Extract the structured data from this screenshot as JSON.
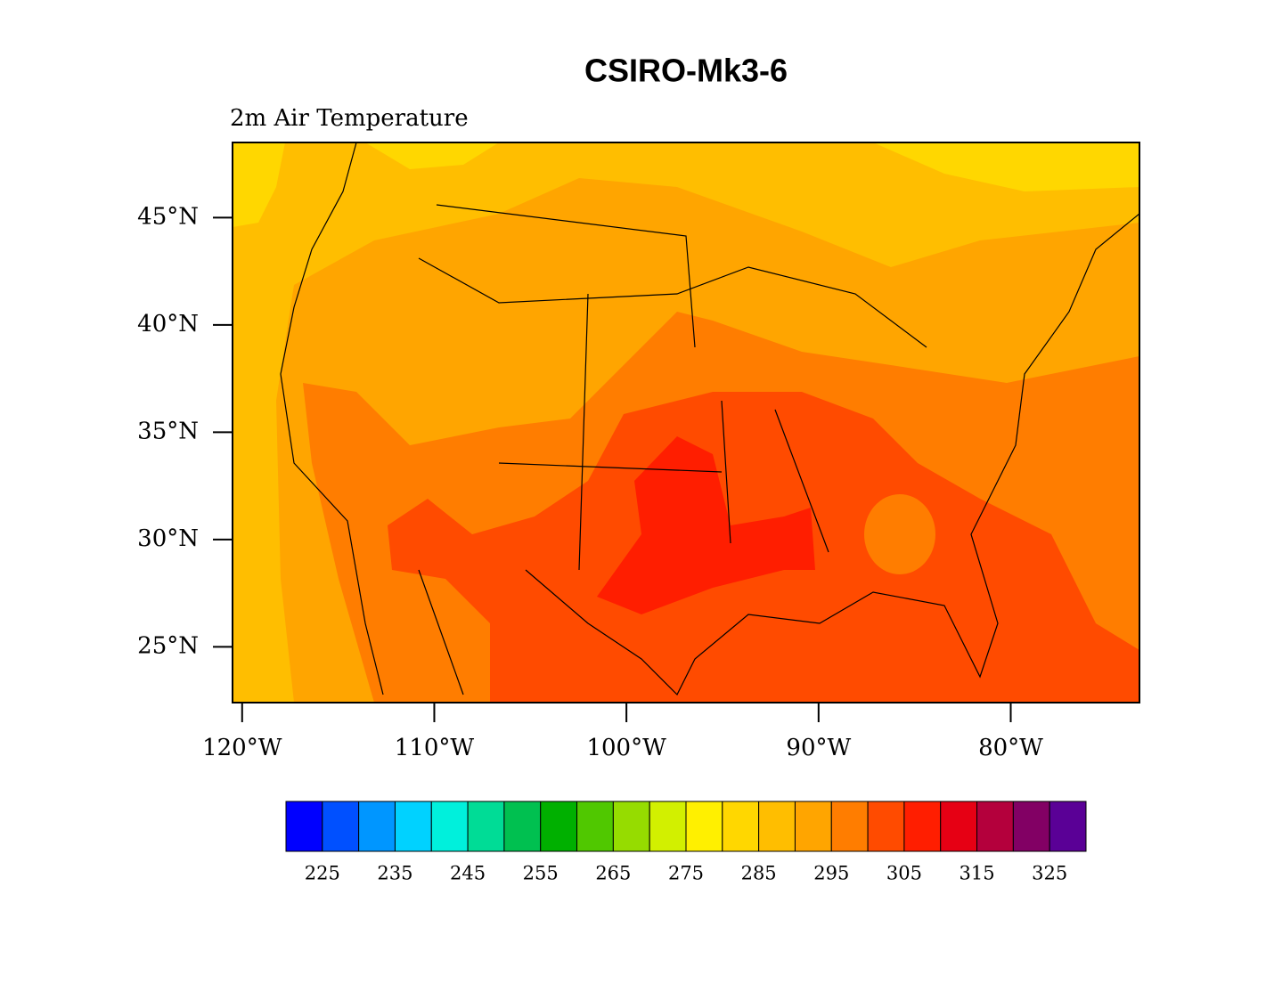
{
  "title": "CSIRO-Mk3-6",
  "subtitle": "2m Air Temperature",
  "map": {
    "xlim": [
      -120.5,
      -73.3
    ],
    "ylim": [
      22.4,
      48.5
    ],
    "xticks": [
      {
        "value": -120,
        "label": "120°W"
      },
      {
        "value": -110,
        "label": "110°W"
      },
      {
        "value": -100,
        "label": "100°W"
      },
      {
        "value": -90,
        "label": "90°W"
      },
      {
        "value": -80,
        "label": "80°W"
      }
    ],
    "yticks": [
      {
        "value": 25,
        "label": "25°N"
      },
      {
        "value": 30,
        "label": "30°N"
      },
      {
        "value": 35,
        "label": "35°N"
      },
      {
        "value": 40,
        "label": "40°N"
      },
      {
        "value": 45,
        "label": "45°N"
      }
    ]
  },
  "colorbar": {
    "colors": [
      "#0000ff",
      "#0050ff",
      "#0096ff",
      "#00d2ff",
      "#00f0dc",
      "#00dc96",
      "#00c050",
      "#00b000",
      "#50c800",
      "#96dc00",
      "#d2f000",
      "#fff000",
      "#ffd700",
      "#ffbe00",
      "#ffa500",
      "#ff7d00",
      "#ff4b00",
      "#ff1e00",
      "#e60014",
      "#b4003c",
      "#820064",
      "#5a0096"
    ],
    "labels": [
      225,
      235,
      245,
      255,
      265,
      275,
      285,
      295,
      305,
      315,
      325
    ]
  }
}
